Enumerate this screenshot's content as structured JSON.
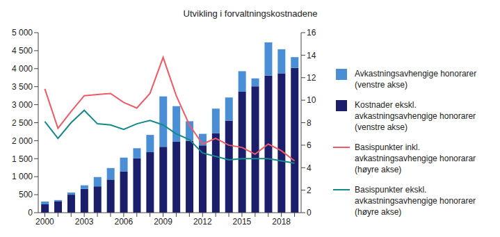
{
  "chart_data": {
    "type": "bar",
    "title": "Utvikling i forvaltningskostnadene",
    "stacked": true,
    "grid": false,
    "legend": "right",
    "categories": [
      "2000",
      null,
      null,
      "2003",
      null,
      null,
      "2006",
      null,
      null,
      "2009",
      null,
      null,
      "2012",
      null,
      null,
      "2015",
      null,
      null,
      "2018",
      null
    ],
    "ylim": [
      0,
      5000
    ],
    "yticks": [
      0,
      {
        "value": 500,
        "label": "500"
      },
      {
        "value": 1000,
        "label": "1 000"
      },
      {
        "value": 1500,
        "label": "1 500"
      },
      {
        "value": 2000,
        "label": "2 000"
      },
      {
        "value": 2500,
        "label": "2 500"
      },
      {
        "value": 3000,
        "label": "3 000"
      },
      {
        "value": 3500,
        "label": "3 500"
      },
      {
        "value": 4000,
        "label": "4 000"
      },
      {
        "value": 4500,
        "label": "4 500"
      },
      {
        "value": 5000,
        "label": "5 000"
      }
    ],
    "y2lim": [
      0,
      16
    ],
    "y2ticks": [
      0,
      2,
      4,
      6,
      8,
      10,
      12,
      14,
      16
    ],
    "series": [
      {
        "name": "Avkastningsavhengige honorarer (venstre akse)",
        "type": "bar",
        "color": "#4a8fd6",
        "values": [
          80,
          30,
          60,
          100,
          260,
          320,
          390,
          280,
          480,
          1400,
          980,
          540,
          320,
          680,
          640,
          570,
          220,
          920,
          670,
          300
        ]
      },
      {
        "name": "Kostnader ekskl. avkastningsavhengige honorarer (venstre akse)",
        "type": "bar",
        "color": "#1b1f6b",
        "values": [
          230,
          320,
          500,
          660,
          730,
          920,
          1140,
          1510,
          1680,
          1830,
          1980,
          2000,
          1870,
          2210,
          2560,
          3360,
          3510,
          3810,
          3870,
          4020
        ]
      },
      {
        "name": "Basispunkter inkl. avkastningsavhengige honorarar (høyre akse)",
        "type": "line",
        "axis": "y2",
        "color": "#ef5a64",
        "values": [
          11.0,
          7.5,
          9.0,
          10.4,
          10.5,
          10.6,
          9.8,
          9.3,
          10.6,
          13.8,
          10.4,
          7.8,
          6.1,
          6.6,
          6.0,
          5.8,
          5.2,
          6.1,
          5.5,
          4.6
        ]
      },
      {
        "name": "Basispunkter ekskl. avkastningsavhengige honorarer (høyre akse)",
        "type": "line",
        "axis": "y2",
        "color": "#15898a",
        "values": [
          8.1,
          6.6,
          8.0,
          9.1,
          7.9,
          7.8,
          7.4,
          7.9,
          8.2,
          7.8,
          7.0,
          6.5,
          5.3,
          5.0,
          4.7,
          4.8,
          4.8,
          4.8,
          4.6,
          4.4
        ]
      }
    ]
  }
}
